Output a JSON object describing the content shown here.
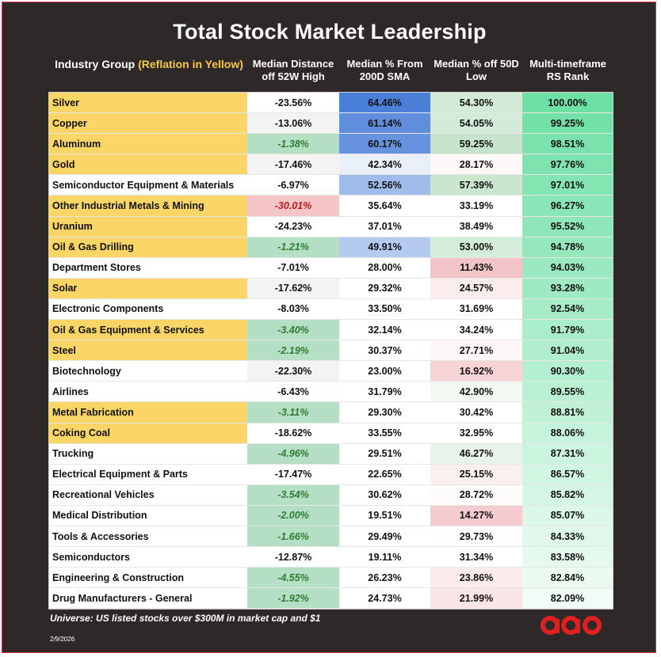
{
  "title": "Total Stock Market Leadership",
  "headers": {
    "industry": "Industry Group",
    "industry_note": "(Reflation in Yellow)",
    "dist52w": "Median Distance off 52W High",
    "sma200": "Median % From 200D SMA",
    "low50": "Median % off 50D Low",
    "rs": "Multi-timeframe RS Rank"
  },
  "colors": {
    "background": "#2f2829",
    "reflation_yellow": "#fbd666",
    "green_cell": "#b5dfc5",
    "red_cell": "#f6c5c8",
    "blue_strong": "#4a7fd8",
    "rs_green": "#6fe0a5",
    "logo_red": "#e02020"
  },
  "rows": [
    {
      "name": "Silver",
      "reflation": true,
      "dist52w": "-23.56%",
      "sma200": "64.46%",
      "low50": "54.30%",
      "rs": "100.00%"
    },
    {
      "name": "Copper",
      "reflation": true,
      "dist52w": "-13.06%",
      "sma200": "61.14%",
      "low50": "54.05%",
      "rs": "99.25%"
    },
    {
      "name": "Aluminum",
      "reflation": true,
      "dist52w": "-1.38%",
      "sma200": "60.17%",
      "low50": "59.25%",
      "rs": "98.51%"
    },
    {
      "name": "Gold",
      "reflation": true,
      "dist52w": "-17.46%",
      "sma200": "42.34%",
      "low50": "28.17%",
      "rs": "97.76%"
    },
    {
      "name": "Semiconductor Equipment & Materials",
      "reflation": false,
      "dist52w": "-6.97%",
      "sma200": "52.56%",
      "low50": "57.39%",
      "rs": "97.01%"
    },
    {
      "name": "Other Industrial Metals & Mining",
      "reflation": true,
      "dist52w": "-30.01%",
      "sma200": "35.64%",
      "low50": "33.19%",
      "rs": "96.27%"
    },
    {
      "name": "Uranium",
      "reflation": true,
      "dist52w": "-24.23%",
      "sma200": "37.01%",
      "low50": "38.49%",
      "rs": "95.52%"
    },
    {
      "name": "Oil & Gas Drilling",
      "reflation": true,
      "dist52w": "-1.21%",
      "sma200": "49.91%",
      "low50": "53.00%",
      "rs": "94.78%"
    },
    {
      "name": "Department Stores",
      "reflation": false,
      "dist52w": "-7.01%",
      "sma200": "28.00%",
      "low50": "11.43%",
      "rs": "94.03%"
    },
    {
      "name": "Solar",
      "reflation": true,
      "dist52w": "-17.62%",
      "sma200": "29.32%",
      "low50": "24.57%",
      "rs": "93.28%"
    },
    {
      "name": "Electronic Components",
      "reflation": false,
      "dist52w": "-8.03%",
      "sma200": "33.50%",
      "low50": "31.69%",
      "rs": "92.54%"
    },
    {
      "name": "Oil & Gas Equipment & Services",
      "reflation": true,
      "dist52w": "-3.40%",
      "sma200": "32.14%",
      "low50": "34.24%",
      "rs": "91.79%"
    },
    {
      "name": "Steel",
      "reflation": true,
      "dist52w": "-2.19%",
      "sma200": "30.37%",
      "low50": "27.71%",
      "rs": "91.04%"
    },
    {
      "name": "Biotechnology",
      "reflation": false,
      "dist52w": "-22.30%",
      "sma200": "23.00%",
      "low50": "16.92%",
      "rs": "90.30%"
    },
    {
      "name": "Airlines",
      "reflation": false,
      "dist52w": "-6.43%",
      "sma200": "31.79%",
      "low50": "42.90%",
      "rs": "89.55%"
    },
    {
      "name": "Metal Fabrication",
      "reflation": true,
      "dist52w": "-3.11%",
      "sma200": "29.30%",
      "low50": "30.42%",
      "rs": "88.81%"
    },
    {
      "name": "Coking Coal",
      "reflation": true,
      "dist52w": "-18.62%",
      "sma200": "33.55%",
      "low50": "32.95%",
      "rs": "88.06%"
    },
    {
      "name": "Trucking",
      "reflation": false,
      "dist52w": "-4.96%",
      "sma200": "29.51%",
      "low50": "46.27%",
      "rs": "87.31%"
    },
    {
      "name": "Electrical Equipment & Parts",
      "reflation": false,
      "dist52w": "-17.47%",
      "sma200": "22.65%",
      "low50": "25.15%",
      "rs": "86.57%"
    },
    {
      "name": "Recreational Vehicles",
      "reflation": false,
      "dist52w": "-3.54%",
      "sma200": "30.62%",
      "low50": "28.72%",
      "rs": "85.82%"
    },
    {
      "name": "Medical Distribution",
      "reflation": false,
      "dist52w": "-2.00%",
      "sma200": "19.51%",
      "low50": "14.27%",
      "rs": "85.07%"
    },
    {
      "name": "Tools & Accessories",
      "reflation": false,
      "dist52w": "-1.66%",
      "sma200": "29.49%",
      "low50": "29.73%",
      "rs": "84.33%"
    },
    {
      "name": "Semiconductors",
      "reflation": false,
      "dist52w": "-12.87%",
      "sma200": "19.11%",
      "low50": "31.34%",
      "rs": "83.58%"
    },
    {
      "name": "Engineering & Construction",
      "reflation": false,
      "dist52w": "-4.55%",
      "sma200": "26.23%",
      "low50": "23.86%",
      "rs": "82.84%"
    },
    {
      "name": "Drug Manufacturers - General",
      "reflation": false,
      "dist52w": "-1.92%",
      "sma200": "24.73%",
      "low50": "21.99%",
      "rs": "82.09%"
    }
  ],
  "footnote": "Universe: US listed stocks over $300M in market cap and $1",
  "date": "2/9/2026",
  "logo_text": "aao"
}
